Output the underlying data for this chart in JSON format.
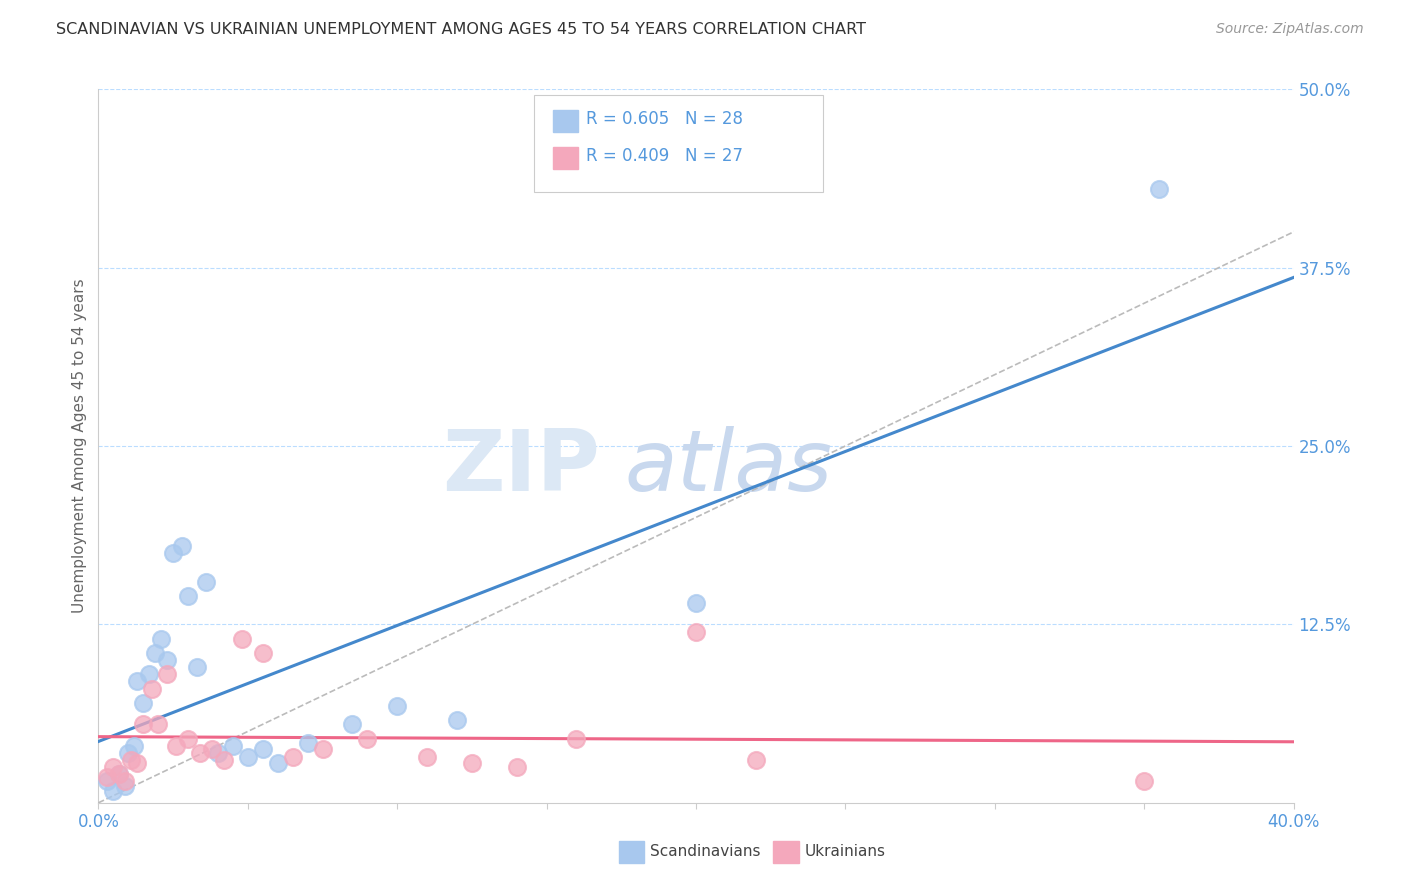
{
  "title": "SCANDINAVIAN VS UKRAINIAN UNEMPLOYMENT AMONG AGES 45 TO 54 YEARS CORRELATION CHART",
  "source": "Source: ZipAtlas.com",
  "xlim": [
    0.0,
    40.0
  ],
  "ylim": [
    0.0,
    50.0
  ],
  "scandinavian_color": "#A8C8EE",
  "ukrainian_color": "#F4A8BC",
  "scandinavian_line_color": "#4488CC",
  "ukrainian_line_color": "#EE6688",
  "scandinavian_r": 0.605,
  "scandinavian_n": 28,
  "ukrainian_r": 0.409,
  "ukrainian_n": 27,
  "legend_label_scand": "Scandinavians",
  "legend_label_ukr": "Ukrainians",
  "ylabel_ticks_right": [
    0.0,
    12.5,
    25.0,
    37.5,
    50.0
  ],
  "ylabel_labels_right": [
    "",
    "12.5%",
    "25.0%",
    "37.5%",
    "50.0%"
  ],
  "scandinavian_points_x": [
    0.3,
    0.5,
    0.7,
    0.9,
    1.0,
    1.2,
    1.3,
    1.5,
    1.7,
    1.9,
    2.1,
    2.3,
    2.5,
    2.8,
    3.0,
    3.3,
    3.6,
    4.0,
    4.5,
    5.0,
    5.5,
    6.0,
    7.0,
    8.5,
    10.0,
    12.0,
    20.0,
    35.5
  ],
  "scandinavian_points_y": [
    1.5,
    0.8,
    2.0,
    1.2,
    3.5,
    4.0,
    8.5,
    7.0,
    9.0,
    10.5,
    11.5,
    10.0,
    17.5,
    18.0,
    14.5,
    9.5,
    15.5,
    3.5,
    4.0,
    3.2,
    3.8,
    2.8,
    4.2,
    5.5,
    6.8,
    5.8,
    14.0,
    43.0
  ],
  "ukrainian_points_x": [
    0.3,
    0.5,
    0.7,
    0.9,
    1.1,
    1.3,
    1.5,
    1.8,
    2.0,
    2.3,
    2.6,
    3.0,
    3.4,
    3.8,
    4.2,
    4.8,
    5.5,
    6.5,
    7.5,
    9.0,
    11.0,
    12.5,
    14.0,
    16.0,
    20.0,
    22.0,
    35.0
  ],
  "ukrainian_points_y": [
    1.8,
    2.5,
    2.0,
    1.5,
    3.0,
    2.8,
    5.5,
    8.0,
    5.5,
    9.0,
    4.0,
    4.5,
    3.5,
    3.8,
    3.0,
    11.5,
    10.5,
    3.2,
    3.8,
    4.5,
    3.2,
    2.8,
    2.5,
    4.5,
    12.0,
    3.0,
    1.5
  ],
  "ref_line_color": "#BBBBBB",
  "watermark_zip_color": "#DCE8F5",
  "watermark_atlas_color": "#C8D8EE"
}
